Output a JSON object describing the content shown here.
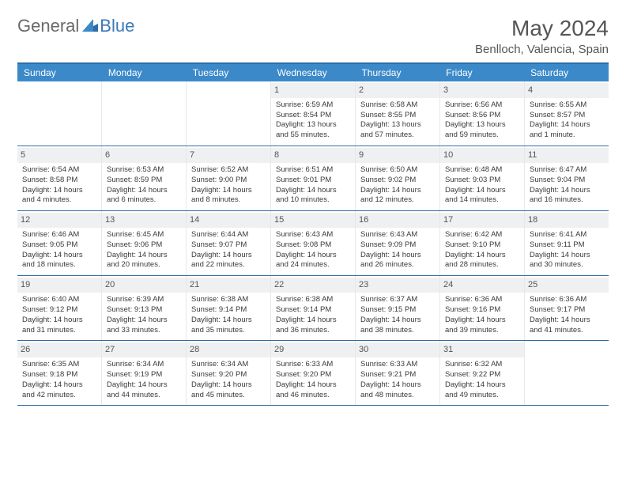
{
  "brand": {
    "general": "General",
    "blue": "Blue"
  },
  "title": "May 2024",
  "location": "Benlloch, Valencia, Spain",
  "colors": {
    "header_bg": "#3b89c9",
    "border": "#2f6ca6",
    "daynum_bg": "#eef0f1",
    "text": "#3a3a3a",
    "brand_blue": "#3b7ab8",
    "brand_gray": "#6a6a6a"
  },
  "day_names": [
    "Sunday",
    "Monday",
    "Tuesday",
    "Wednesday",
    "Thursday",
    "Friday",
    "Saturday"
  ],
  "weeks": [
    [
      {
        "day": "",
        "sunrise": "",
        "sunset": "",
        "daylight": ""
      },
      {
        "day": "",
        "sunrise": "",
        "sunset": "",
        "daylight": ""
      },
      {
        "day": "",
        "sunrise": "",
        "sunset": "",
        "daylight": ""
      },
      {
        "day": "1",
        "sunrise": "Sunrise: 6:59 AM",
        "sunset": "Sunset: 8:54 PM",
        "daylight": "Daylight: 13 hours and 55 minutes."
      },
      {
        "day": "2",
        "sunrise": "Sunrise: 6:58 AM",
        "sunset": "Sunset: 8:55 PM",
        "daylight": "Daylight: 13 hours and 57 minutes."
      },
      {
        "day": "3",
        "sunrise": "Sunrise: 6:56 AM",
        "sunset": "Sunset: 8:56 PM",
        "daylight": "Daylight: 13 hours and 59 minutes."
      },
      {
        "day": "4",
        "sunrise": "Sunrise: 6:55 AM",
        "sunset": "Sunset: 8:57 PM",
        "daylight": "Daylight: 14 hours and 1 minute."
      }
    ],
    [
      {
        "day": "5",
        "sunrise": "Sunrise: 6:54 AM",
        "sunset": "Sunset: 8:58 PM",
        "daylight": "Daylight: 14 hours and 4 minutes."
      },
      {
        "day": "6",
        "sunrise": "Sunrise: 6:53 AM",
        "sunset": "Sunset: 8:59 PM",
        "daylight": "Daylight: 14 hours and 6 minutes."
      },
      {
        "day": "7",
        "sunrise": "Sunrise: 6:52 AM",
        "sunset": "Sunset: 9:00 PM",
        "daylight": "Daylight: 14 hours and 8 minutes."
      },
      {
        "day": "8",
        "sunrise": "Sunrise: 6:51 AM",
        "sunset": "Sunset: 9:01 PM",
        "daylight": "Daylight: 14 hours and 10 minutes."
      },
      {
        "day": "9",
        "sunrise": "Sunrise: 6:50 AM",
        "sunset": "Sunset: 9:02 PM",
        "daylight": "Daylight: 14 hours and 12 minutes."
      },
      {
        "day": "10",
        "sunrise": "Sunrise: 6:48 AM",
        "sunset": "Sunset: 9:03 PM",
        "daylight": "Daylight: 14 hours and 14 minutes."
      },
      {
        "day": "11",
        "sunrise": "Sunrise: 6:47 AM",
        "sunset": "Sunset: 9:04 PM",
        "daylight": "Daylight: 14 hours and 16 minutes."
      }
    ],
    [
      {
        "day": "12",
        "sunrise": "Sunrise: 6:46 AM",
        "sunset": "Sunset: 9:05 PM",
        "daylight": "Daylight: 14 hours and 18 minutes."
      },
      {
        "day": "13",
        "sunrise": "Sunrise: 6:45 AM",
        "sunset": "Sunset: 9:06 PM",
        "daylight": "Daylight: 14 hours and 20 minutes."
      },
      {
        "day": "14",
        "sunrise": "Sunrise: 6:44 AM",
        "sunset": "Sunset: 9:07 PM",
        "daylight": "Daylight: 14 hours and 22 minutes."
      },
      {
        "day": "15",
        "sunrise": "Sunrise: 6:43 AM",
        "sunset": "Sunset: 9:08 PM",
        "daylight": "Daylight: 14 hours and 24 minutes."
      },
      {
        "day": "16",
        "sunrise": "Sunrise: 6:43 AM",
        "sunset": "Sunset: 9:09 PM",
        "daylight": "Daylight: 14 hours and 26 minutes."
      },
      {
        "day": "17",
        "sunrise": "Sunrise: 6:42 AM",
        "sunset": "Sunset: 9:10 PM",
        "daylight": "Daylight: 14 hours and 28 minutes."
      },
      {
        "day": "18",
        "sunrise": "Sunrise: 6:41 AM",
        "sunset": "Sunset: 9:11 PM",
        "daylight": "Daylight: 14 hours and 30 minutes."
      }
    ],
    [
      {
        "day": "19",
        "sunrise": "Sunrise: 6:40 AM",
        "sunset": "Sunset: 9:12 PM",
        "daylight": "Daylight: 14 hours and 31 minutes."
      },
      {
        "day": "20",
        "sunrise": "Sunrise: 6:39 AM",
        "sunset": "Sunset: 9:13 PM",
        "daylight": "Daylight: 14 hours and 33 minutes."
      },
      {
        "day": "21",
        "sunrise": "Sunrise: 6:38 AM",
        "sunset": "Sunset: 9:14 PM",
        "daylight": "Daylight: 14 hours and 35 minutes."
      },
      {
        "day": "22",
        "sunrise": "Sunrise: 6:38 AM",
        "sunset": "Sunset: 9:14 PM",
        "daylight": "Daylight: 14 hours and 36 minutes."
      },
      {
        "day": "23",
        "sunrise": "Sunrise: 6:37 AM",
        "sunset": "Sunset: 9:15 PM",
        "daylight": "Daylight: 14 hours and 38 minutes."
      },
      {
        "day": "24",
        "sunrise": "Sunrise: 6:36 AM",
        "sunset": "Sunset: 9:16 PM",
        "daylight": "Daylight: 14 hours and 39 minutes."
      },
      {
        "day": "25",
        "sunrise": "Sunrise: 6:36 AM",
        "sunset": "Sunset: 9:17 PM",
        "daylight": "Daylight: 14 hours and 41 minutes."
      }
    ],
    [
      {
        "day": "26",
        "sunrise": "Sunrise: 6:35 AM",
        "sunset": "Sunset: 9:18 PM",
        "daylight": "Daylight: 14 hours and 42 minutes."
      },
      {
        "day": "27",
        "sunrise": "Sunrise: 6:34 AM",
        "sunset": "Sunset: 9:19 PM",
        "daylight": "Daylight: 14 hours and 44 minutes."
      },
      {
        "day": "28",
        "sunrise": "Sunrise: 6:34 AM",
        "sunset": "Sunset: 9:20 PM",
        "daylight": "Daylight: 14 hours and 45 minutes."
      },
      {
        "day": "29",
        "sunrise": "Sunrise: 6:33 AM",
        "sunset": "Sunset: 9:20 PM",
        "daylight": "Daylight: 14 hours and 46 minutes."
      },
      {
        "day": "30",
        "sunrise": "Sunrise: 6:33 AM",
        "sunset": "Sunset: 9:21 PM",
        "daylight": "Daylight: 14 hours and 48 minutes."
      },
      {
        "day": "31",
        "sunrise": "Sunrise: 6:32 AM",
        "sunset": "Sunset: 9:22 PM",
        "daylight": "Daylight: 14 hours and 49 minutes."
      },
      {
        "day": "",
        "sunrise": "",
        "sunset": "",
        "daylight": ""
      }
    ]
  ]
}
